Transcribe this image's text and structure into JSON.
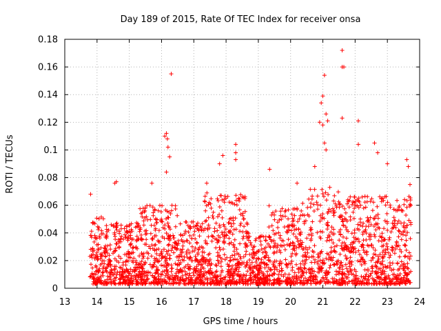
{
  "chart_data": {
    "type": "scatter",
    "title": "Day 189 of 2015, Rate Of TEC Index for receiver onsa",
    "xlabel": "GPS time / hours",
    "ylabel": "ROTI / TECUs",
    "xlim": [
      13,
      24
    ],
    "ylim": [
      0,
      0.18
    ],
    "xticks": [
      "13",
      "14",
      "15",
      "16",
      "17",
      "18",
      "19",
      "20",
      "21",
      "22",
      "23",
      "24"
    ],
    "yticks": [
      "0",
      "0.02",
      "0.04",
      "0.06",
      "0.08",
      "0.1",
      "0.12",
      "0.14",
      "0.16",
      "0.18"
    ],
    "grid": true,
    "marker": "+",
    "series_color": "#ff0000",
    "density_note": "dense cloud of ROTI points from 13.75 to 23.75 h, mostly 0.005-0.05 TECU/min",
    "notable_points": [
      {
        "x": 13.8,
        "y": 0.068
      },
      {
        "x": 14.55,
        "y": 0.076
      },
      {
        "x": 14.6,
        "y": 0.077
      },
      {
        "x": 15.7,
        "y": 0.076
      },
      {
        "x": 16.1,
        "y": 0.11
      },
      {
        "x": 16.15,
        "y": 0.112
      },
      {
        "x": 16.18,
        "y": 0.108
      },
      {
        "x": 16.2,
        "y": 0.102
      },
      {
        "x": 16.25,
        "y": 0.095
      },
      {
        "x": 16.15,
        "y": 0.084
      },
      {
        "x": 16.3,
        "y": 0.155
      },
      {
        "x": 17.4,
        "y": 0.076
      },
      {
        "x": 17.8,
        "y": 0.09
      },
      {
        "x": 17.9,
        "y": 0.096
      },
      {
        "x": 18.3,
        "y": 0.104
      },
      {
        "x": 18.3,
        "y": 0.098
      },
      {
        "x": 18.3,
        "y": 0.093
      },
      {
        "x": 19.35,
        "y": 0.086
      },
      {
        "x": 20.2,
        "y": 0.076
      },
      {
        "x": 20.75,
        "y": 0.088
      },
      {
        "x": 20.9,
        "y": 0.12
      },
      {
        "x": 20.95,
        "y": 0.134
      },
      {
        "x": 21.0,
        "y": 0.139
      },
      {
        "x": 21.05,
        "y": 0.154
      },
      {
        "x": 21.0,
        "y": 0.118
      },
      {
        "x": 21.1,
        "y": 0.126
      },
      {
        "x": 21.15,
        "y": 0.121
      },
      {
        "x": 21.05,
        "y": 0.105
      },
      {
        "x": 21.1,
        "y": 0.1
      },
      {
        "x": 21.6,
        "y": 0.172
      },
      {
        "x": 21.6,
        "y": 0.16
      },
      {
        "x": 21.65,
        "y": 0.16
      },
      {
        "x": 21.6,
        "y": 0.123
      },
      {
        "x": 22.1,
        "y": 0.121
      },
      {
        "x": 22.1,
        "y": 0.104
      },
      {
        "x": 22.6,
        "y": 0.105
      },
      {
        "x": 22.7,
        "y": 0.098
      },
      {
        "x": 23.0,
        "y": 0.09
      },
      {
        "x": 23.6,
        "y": 0.093
      },
      {
        "x": 23.65,
        "y": 0.088
      },
      {
        "x": 23.7,
        "y": 0.075
      }
    ]
  }
}
